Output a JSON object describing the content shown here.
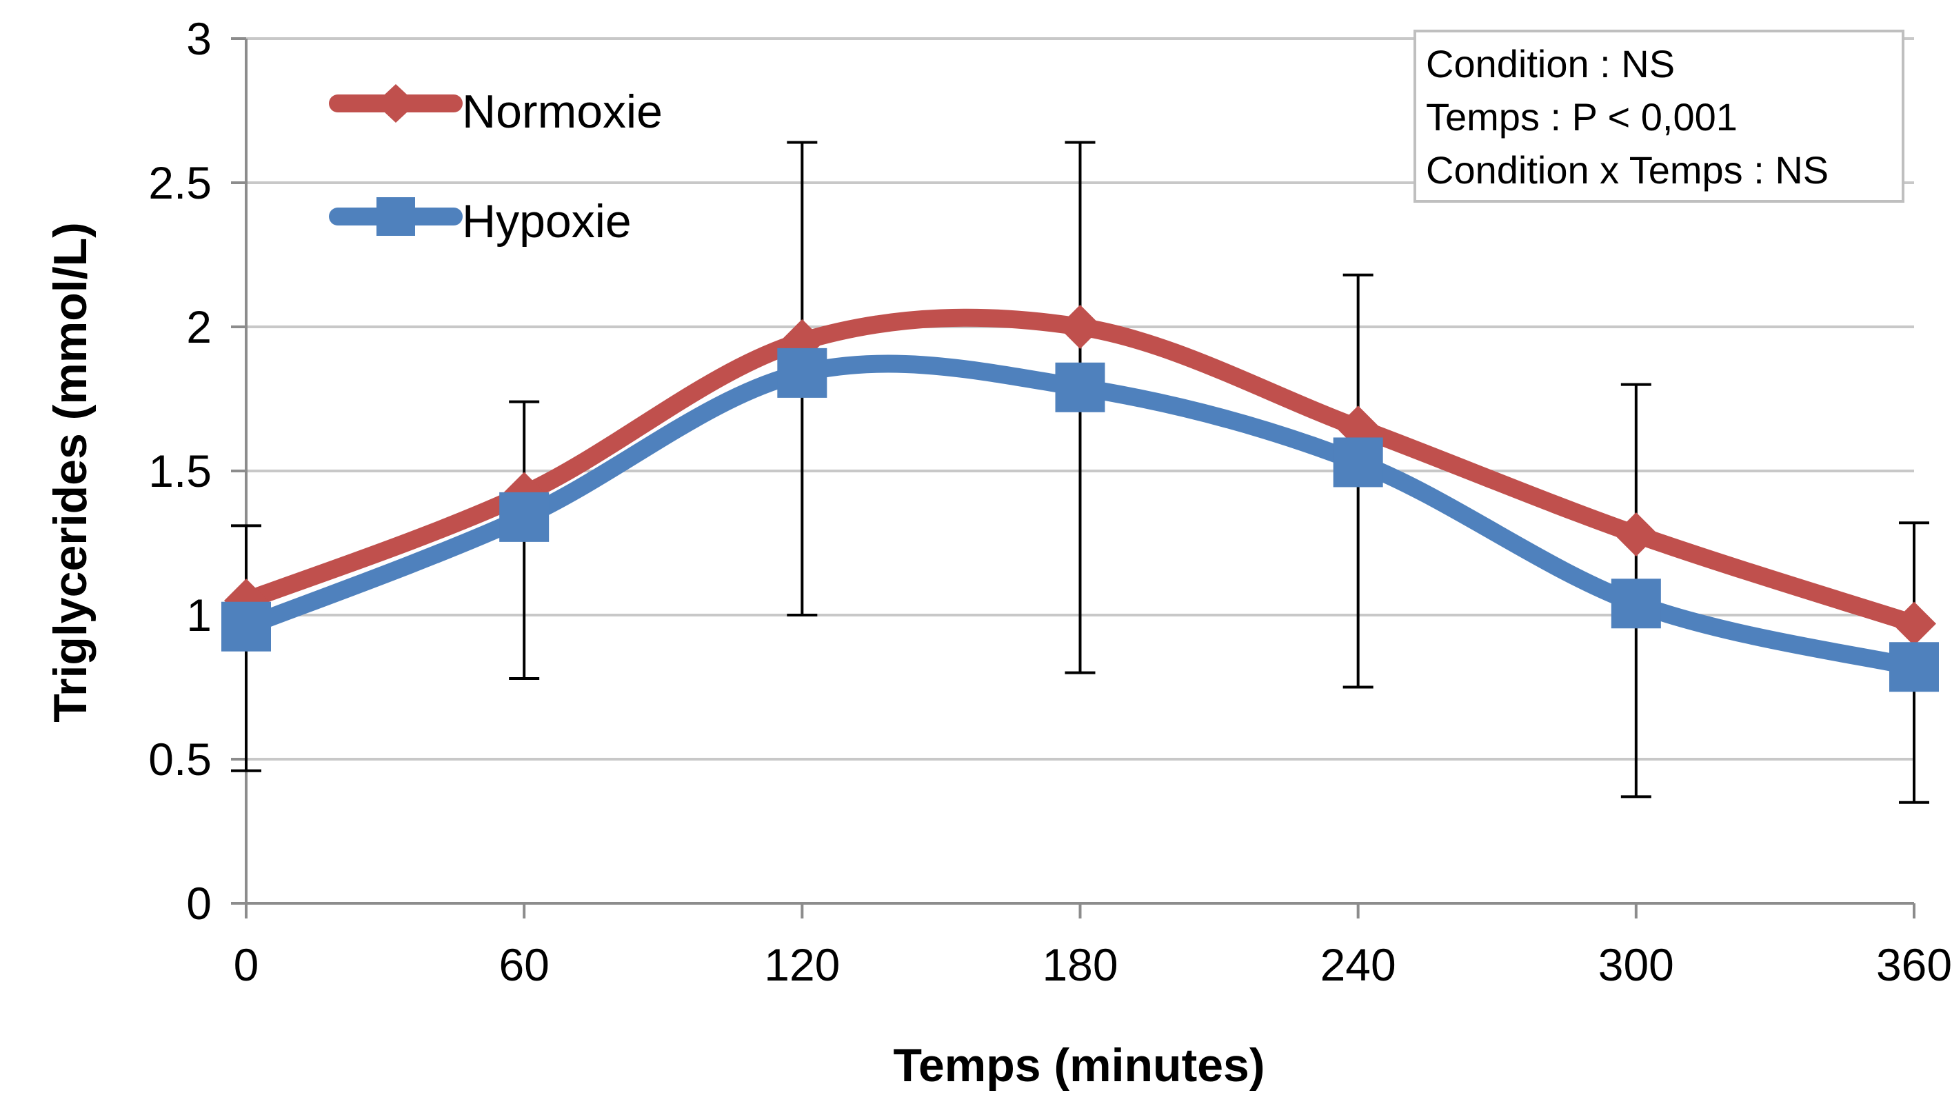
{
  "chart_data": {
    "type": "line",
    "title": "",
    "xlabel": "Temps (minutes)",
    "ylabel": "Triglycerides (mmol/L)",
    "x": [
      0,
      60,
      120,
      180,
      240,
      300,
      360
    ],
    "xlim": [
      0,
      360
    ],
    "ylim": [
      0,
      3
    ],
    "x_ticks": [
      "0",
      "60",
      "120",
      "180",
      "240",
      "300",
      "360"
    ],
    "y_ticks": [
      "0",
      "0.5",
      "1",
      "1.5",
      "2",
      "2.5",
      "3"
    ],
    "y_tick_values": [
      0,
      0.5,
      1,
      1.5,
      2,
      2.5,
      3
    ],
    "grid": "horizontal",
    "smooth": true,
    "legend_position": "top-left",
    "series": [
      {
        "name": "Normoxie",
        "color": "#c0504d",
        "marker": "diamond",
        "values": [
          1.05,
          1.42,
          1.95,
          2.0,
          1.65,
          1.28,
          0.97
        ]
      },
      {
        "name": "Hypoxie",
        "color": "#4f81bd",
        "marker": "square",
        "values": [
          0.96,
          1.34,
          1.84,
          1.79,
          1.53,
          1.04,
          0.82
        ]
      }
    ],
    "error_bars": {
      "color": "#000000",
      "upper": [
        1.31,
        1.74,
        2.64,
        2.64,
        2.18,
        1.8,
        1.32
      ],
      "lower": [
        0.46,
        0.78,
        1.0,
        0.8,
        0.75,
        0.37,
        0.35
      ]
    },
    "annotation": {
      "lines": [
        "Condition : NS",
        "Temps : P < 0,001",
        "Condition x Temps : NS"
      ],
      "position": "top-right"
    }
  }
}
